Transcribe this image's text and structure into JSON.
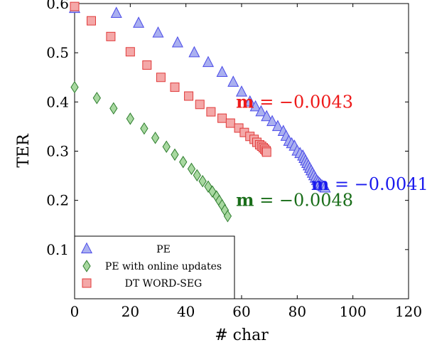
{
  "chart_data": {
    "type": "scatter",
    "xlabel": "# char",
    "ylabel": "TER",
    "xlim": [
      0,
      120
    ],
    "ylim": [
      0,
      0.6
    ],
    "xticks": [
      0,
      20,
      40,
      60,
      80,
      100,
      120
    ],
    "yticks": [
      0.1,
      0.2,
      0.3,
      0.4,
      0.5,
      0.6
    ],
    "xtick_labels": [
      "0",
      "20",
      "40",
      "60",
      "80",
      "100",
      "120"
    ],
    "ytick_labels": [
      "0.1",
      "0.2",
      "0.3",
      "0.4",
      "0.5",
      "0.6"
    ],
    "grid": false,
    "legend_position": "bottom-left",
    "series": [
      {
        "name": "PE",
        "marker": "triangle",
        "color": "#4a4ae8",
        "fill": "#aab0f0",
        "x": [
          0,
          15,
          23,
          30,
          37,
          43,
          48,
          53,
          57,
          60,
          63,
          65,
          67,
          69,
          71,
          73,
          75,
          76,
          77,
          78,
          79,
          80,
          81,
          82,
          82.5,
          83,
          83.5,
          84,
          84.5,
          85,
          85.5,
          86,
          86.5,
          87,
          87.5,
          88,
          88.5,
          89,
          89.5,
          90
        ],
        "y": [
          0.59,
          0.58,
          0.56,
          0.54,
          0.52,
          0.5,
          0.48,
          0.46,
          0.44,
          0.42,
          0.4,
          0.39,
          0.38,
          0.37,
          0.36,
          0.35,
          0.34,
          0.33,
          0.32,
          0.315,
          0.31,
          0.3,
          0.295,
          0.29,
          0.285,
          0.28,
          0.275,
          0.27,
          0.265,
          0.26,
          0.255,
          0.25,
          0.245,
          0.24,
          0.237,
          0.234,
          0.231,
          0.229,
          0.227,
          0.225
        ]
      },
      {
        "name": "PE with online updates",
        "marker": "diamond",
        "color": "#2e7d2e",
        "fill": "#a8d8a0",
        "x": [
          0,
          8,
          14,
          20,
          25,
          29,
          33,
          36,
          39,
          42,
          44,
          46,
          48,
          49.5,
          51,
          52,
          53,
          54,
          55
        ],
        "y": [
          0.43,
          0.408,
          0.387,
          0.366,
          0.346,
          0.327,
          0.309,
          0.293,
          0.278,
          0.264,
          0.251,
          0.239,
          0.228,
          0.218,
          0.208,
          0.199,
          0.19,
          0.18,
          0.168
        ]
      },
      {
        "name": "DT WORD-SEG",
        "marker": "square",
        "color": "#e03a3a",
        "fill": "#f4a8a8",
        "x": [
          0,
          6,
          13,
          20,
          26,
          31,
          36,
          41,
          45,
          49,
          53,
          56,
          59,
          61,
          63,
          64.5,
          65.5,
          66.5,
          67.2,
          67.8,
          68.3,
          68.8,
          69
        ],
        "y": [
          0.594,
          0.565,
          0.533,
          0.502,
          0.475,
          0.45,
          0.43,
          0.412,
          0.395,
          0.38,
          0.367,
          0.357,
          0.347,
          0.338,
          0.33,
          0.324,
          0.318,
          0.313,
          0.31,
          0.307,
          0.304,
          0.301,
          0.298
        ]
      }
    ],
    "annotations": [
      {
        "label": "m",
        "value": " = −0.0043",
        "color": "#ee1a1a",
        "x": 58,
        "y": 0.4
      },
      {
        "label": "m",
        "value": " = −0.0041",
        "color": "#1a1aee",
        "x": 85,
        "y": 0.233
      },
      {
        "label": "m",
        "value": " = −0.0048",
        "color": "#1a6e1a",
        "x": 58,
        "y": 0.2
      }
    ]
  }
}
